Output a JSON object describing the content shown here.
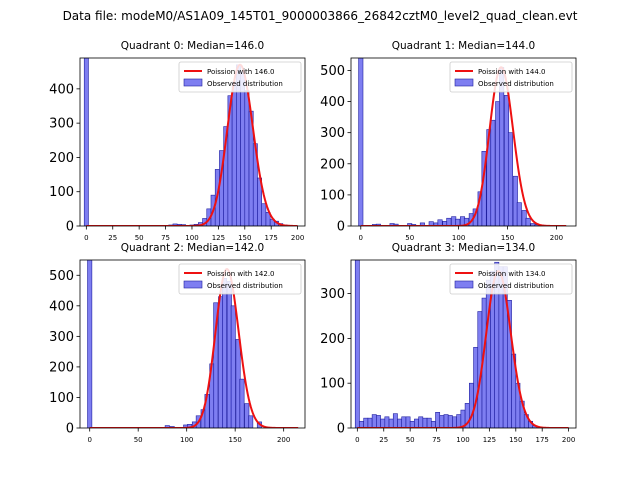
{
  "figure_title": "Data file: modeM0/AS1A09_145T01_9000003866_26842cztM0_level2_quad_clean.evt",
  "colors": {
    "bar_fill": "#7070f0",
    "bar_edge": "#2020a0",
    "poisson_line": "#ee1111",
    "axes": "#000000"
  },
  "chart_data": [
    {
      "type": "bar",
      "title": "Quadrant 0: Median=146.0",
      "legend": {
        "line_label": "Poission with 146.0",
        "bar_label": "Observed distribution",
        "placement": "upper-right"
      },
      "xlim": [
        -6,
        207
      ],
      "ylim": [
        0,
        490
      ],
      "xticks": [
        0,
        25,
        50,
        75,
        100,
        125,
        150,
        175,
        200
      ],
      "yticks": [
        0,
        100,
        200,
        300,
        400
      ],
      "bin_width": 4,
      "bins": [
        {
          "x": 0,
          "y": 490
        },
        {
          "x": 80,
          "y": 3
        },
        {
          "x": 84,
          "y": 6
        },
        {
          "x": 88,
          "y": 5
        },
        {
          "x": 92,
          "y": 4
        },
        {
          "x": 100,
          "y": 3
        },
        {
          "x": 104,
          "y": 5
        },
        {
          "x": 108,
          "y": 10
        },
        {
          "x": 112,
          "y": 22
        },
        {
          "x": 116,
          "y": 50
        },
        {
          "x": 120,
          "y": 90
        },
        {
          "x": 124,
          "y": 165
        },
        {
          "x": 128,
          "y": 220
        },
        {
          "x": 132,
          "y": 290
        },
        {
          "x": 136,
          "y": 380
        },
        {
          "x": 140,
          "y": 420
        },
        {
          "x": 144,
          "y": 470
        },
        {
          "x": 148,
          "y": 450
        },
        {
          "x": 152,
          "y": 395
        },
        {
          "x": 156,
          "y": 335
        },
        {
          "x": 160,
          "y": 240
        },
        {
          "x": 164,
          "y": 140
        },
        {
          "x": 168,
          "y": 65
        },
        {
          "x": 172,
          "y": 40
        },
        {
          "x": 176,
          "y": 20
        },
        {
          "x": 180,
          "y": 14
        },
        {
          "x": 184,
          "y": 7
        },
        {
          "x": 188,
          "y": 3
        }
      ],
      "poisson": {
        "mean": 146.0,
        "peak": 470,
        "xmin": 0,
        "xmax": 200
      }
    },
    {
      "type": "bar",
      "title": "Quadrant 1: Median=144.0",
      "legend": {
        "line_label": "Poission with 144.0",
        "bar_label": "Observed distribution",
        "placement": "upper-right"
      },
      "xlim": [
        -10,
        220
      ],
      "ylim": [
        0,
        540
      ],
      "xticks": [
        0,
        50,
        100,
        150,
        200
      ],
      "yticks": [
        0,
        100,
        200,
        300,
        400,
        500
      ],
      "bin_width": 4.5,
      "bins": [
        {
          "x": 0,
          "y": 540
        },
        {
          "x": 14,
          "y": 5
        },
        {
          "x": 18,
          "y": 6
        },
        {
          "x": 32,
          "y": 8
        },
        {
          "x": 36,
          "y": 6
        },
        {
          "x": 50,
          "y": 8
        },
        {
          "x": 54,
          "y": 5
        },
        {
          "x": 63,
          "y": 10
        },
        {
          "x": 72,
          "y": 14
        },
        {
          "x": 77,
          "y": 10
        },
        {
          "x": 81,
          "y": 20
        },
        {
          "x": 86,
          "y": 15
        },
        {
          "x": 90,
          "y": 25
        },
        {
          "x": 95,
          "y": 30
        },
        {
          "x": 99,
          "y": 22
        },
        {
          "x": 104,
          "y": 30
        },
        {
          "x": 108,
          "y": 25
        },
        {
          "x": 113,
          "y": 40
        },
        {
          "x": 117,
          "y": 55
        },
        {
          "x": 122,
          "y": 110
        },
        {
          "x": 126,
          "y": 240
        },
        {
          "x": 131,
          "y": 310
        },
        {
          "x": 135,
          "y": 340
        },
        {
          "x": 140,
          "y": 400
        },
        {
          "x": 144,
          "y": 510
        },
        {
          "x": 149,
          "y": 420
        },
        {
          "x": 153,
          "y": 300
        },
        {
          "x": 158,
          "y": 160
        },
        {
          "x": 162,
          "y": 75
        },
        {
          "x": 167,
          "y": 50
        },
        {
          "x": 171,
          "y": 25
        },
        {
          "x": 176,
          "y": 8
        },
        {
          "x": 180,
          "y": 4
        },
        {
          "x": 185,
          "y": 3
        }
      ],
      "poisson": {
        "mean": 144.0,
        "peak": 510,
        "xmin": 0,
        "xmax": 210
      }
    },
    {
      "type": "bar",
      "title": "Quadrant 2: Median=142.0",
      "legend": {
        "line_label": "Poission with 142.0",
        "bar_label": "Observed distribution",
        "placement": "upper-right"
      },
      "xlim": [
        -10,
        222
      ],
      "ylim": [
        0,
        550
      ],
      "xticks": [
        0,
        50,
        100,
        150,
        200
      ],
      "yticks": [
        0,
        100,
        200,
        300,
        400,
        500
      ],
      "bin_width": 4.5,
      "bins": [
        {
          "x": 0,
          "y": 550
        },
        {
          "x": 80,
          "y": 8
        },
        {
          "x": 85,
          "y": 5
        },
        {
          "x": 99,
          "y": 10
        },
        {
          "x": 103,
          "y": 12
        },
        {
          "x": 108,
          "y": 20
        },
        {
          "x": 112,
          "y": 40
        },
        {
          "x": 117,
          "y": 60
        },
        {
          "x": 121,
          "y": 110
        },
        {
          "x": 126,
          "y": 210
        },
        {
          "x": 130,
          "y": 410
        },
        {
          "x": 135,
          "y": 430
        },
        {
          "x": 139,
          "y": 490
        },
        {
          "x": 144,
          "y": 480
        },
        {
          "x": 148,
          "y": 400
        },
        {
          "x": 153,
          "y": 290
        },
        {
          "x": 157,
          "y": 160
        },
        {
          "x": 162,
          "y": 80
        },
        {
          "x": 166,
          "y": 40
        },
        {
          "x": 175,
          "y": 20
        }
      ],
      "poisson": {
        "mean": 142.0,
        "peak": 520,
        "xmin": 0,
        "xmax": 215
      }
    },
    {
      "type": "bar",
      "title": "Quadrant 3: Median=134.0",
      "legend": {
        "line_label": "Poission with 134.0",
        "bar_label": "Observed distribution",
        "placement": "upper-right"
      },
      "xlim": [
        -6,
        207
      ],
      "ylim": [
        0,
        375
      ],
      "xticks": [
        0,
        25,
        50,
        75,
        100,
        125,
        150,
        175,
        200
      ],
      "yticks": [
        0,
        100,
        200,
        300
      ],
      "bin_width": 4,
      "bins": [
        {
          "x": 0,
          "y": 375
        },
        {
          "x": 4,
          "y": 15
        },
        {
          "x": 8,
          "y": 22
        },
        {
          "x": 12,
          "y": 22
        },
        {
          "x": 16,
          "y": 30
        },
        {
          "x": 20,
          "y": 28
        },
        {
          "x": 24,
          "y": 20
        },
        {
          "x": 28,
          "y": 25
        },
        {
          "x": 32,
          "y": 20
        },
        {
          "x": 36,
          "y": 32
        },
        {
          "x": 40,
          "y": 20
        },
        {
          "x": 44,
          "y": 25
        },
        {
          "x": 48,
          "y": 25
        },
        {
          "x": 52,
          "y": 15
        },
        {
          "x": 56,
          "y": 20
        },
        {
          "x": 60,
          "y": 25
        },
        {
          "x": 64,
          "y": 22
        },
        {
          "x": 68,
          "y": 22
        },
        {
          "x": 72,
          "y": 15
        },
        {
          "x": 76,
          "y": 35
        },
        {
          "x": 80,
          "y": 28
        },
        {
          "x": 84,
          "y": 30
        },
        {
          "x": 88,
          "y": 28
        },
        {
          "x": 92,
          "y": 25
        },
        {
          "x": 96,
          "y": 30
        },
        {
          "x": 100,
          "y": 40
        },
        {
          "x": 104,
          "y": 55
        },
        {
          "x": 108,
          "y": 100
        },
        {
          "x": 112,
          "y": 180
        },
        {
          "x": 116,
          "y": 260
        },
        {
          "x": 120,
          "y": 290
        },
        {
          "x": 124,
          "y": 330
        },
        {
          "x": 128,
          "y": 350
        },
        {
          "x": 132,
          "y": 370
        },
        {
          "x": 136,
          "y": 360
        },
        {
          "x": 140,
          "y": 360
        },
        {
          "x": 144,
          "y": 285
        },
        {
          "x": 148,
          "y": 165
        },
        {
          "x": 152,
          "y": 100
        },
        {
          "x": 156,
          "y": 60
        },
        {
          "x": 160,
          "y": 30
        },
        {
          "x": 164,
          "y": 15
        },
        {
          "x": 168,
          "y": 5
        }
      ],
      "poisson": {
        "mean": 134.0,
        "peak": 350,
        "xmin": 0,
        "xmax": 200
      }
    }
  ]
}
